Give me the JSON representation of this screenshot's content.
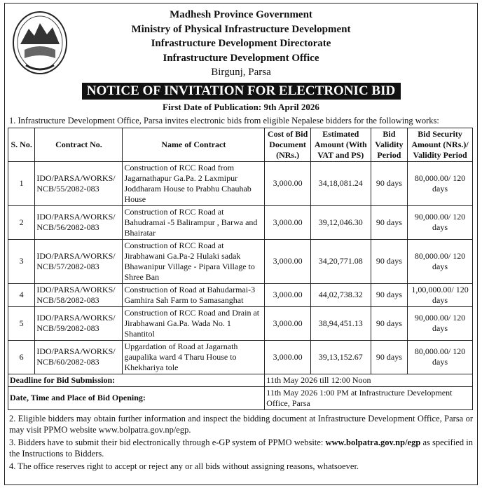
{
  "header": {
    "line1": "Madhesh Province Government",
    "line2": "Ministry of Physical Infrastructure Development",
    "line3": "Infrastructure Development Directorate",
    "line4": "Infrastructure Development Office",
    "location": "Birgunj, Parsa",
    "title": "NOTICE OF INVITATION FOR ELECTRONIC BID",
    "publication": "First Date of Publication: 9th April 2026"
  },
  "intro": "1. Infrastructure Development Office, Parsa invites electronic bids from eligible Nepalese bidders for the following works:",
  "table": {
    "headers": [
      "S. No.",
      "Contract No.",
      "Name of Contract",
      "Cost of Bid Document (NRs.)",
      "Estimated Amount (With VAT and PS)",
      "Bid Validity Period",
      "Bid Security Amount (NRs.)/ Validity Period"
    ],
    "rows": [
      {
        "sno": "1",
        "contract": "IDO/PARSA/WORKS/ NCB/55/2082-083",
        "name": "Construction of RCC Road from Jagarnathapur Ga.Pa. 2  Laxmipur Joddharam House to Prabhu Chauhab House",
        "cost": "3,000.00",
        "estimate": "34,18,081.24",
        "validity": "90 days",
        "security": "80,000.00/ 120 days"
      },
      {
        "sno": "2",
        "contract": "IDO/PARSA/WORKS/ NCB/56/2082-083",
        "name": "Construction of RCC Road at Bahudramai -5 Balirampur , Barwa and Bhairatar",
        "cost": "3,000.00",
        "estimate": "39,12,046.30",
        "validity": "90 days",
        "security": "90,000.00/ 120 days"
      },
      {
        "sno": "3",
        "contract": "IDO/PARSA/WORKS/ NCB/57/2082-083",
        "name": "Construction of RCC Road at Jirabhawani Ga.Pa-2  Hulaki sadak Bhawanipur Village - Pipara Village to Shree Ban",
        "cost": "3,000.00",
        "estimate": "34,20,771.08",
        "validity": "90 days",
        "security": "80,000.00/ 120 days"
      },
      {
        "sno": "4",
        "contract": "IDO/PARSA/WORKS/ NCB/58/2082-083",
        "name": "Construction of Road at Bahudarmai-3 Gamhira Sah Farm to Samasanghat",
        "cost": "3,000.00",
        "estimate": "44,02,738.32",
        "validity": "90 days",
        "security": "1,00,000.00/ 120 days"
      },
      {
        "sno": "5",
        "contract": "IDO/PARSA/WORKS/ NCB/59/2082-083",
        "name": "Construction of RCC Road and Drain at Jirabhawani Ga.Pa. Wada No. 1 Shantitol",
        "cost": "3,000.00",
        "estimate": "38,94,451.13",
        "validity": "90 days",
        "security": "90,000.00/ 120 days"
      },
      {
        "sno": "6",
        "contract": "IDO/PARSA/WORKS/ NCB/60/2082-083",
        "name": "Upgardation of Road at Jagarnath gaupalika ward 4 Tharu House to Khekhariya tole",
        "cost": "3,000.00",
        "estimate": "39,13,152.67",
        "validity": "90 days",
        "security": "80,000.00/ 120 days"
      }
    ],
    "deadline_label": "Deadline for Bid Submission:",
    "deadline_value": "11th May 2026 till 12:00 Noon",
    "opening_label": "Date, Time and Place of Bid Opening:",
    "opening_value": "11th May 2026 1:00 PM at Infrastructure Development Office, Parsa"
  },
  "notes": {
    "n2": "2. Eligible bidders may obtain further information and inspect the bidding document at Infrastructure Development Office, Parsa or may visit PPMO website www.bolpatra.gov.np/egp.",
    "n3_pre": "3. Bidders have to submit their bid electronically through e-GP system of PPMO website: ",
    "n3_link": "www.bolpatra.gov.np/egp",
    "n3_post": " as specified in the Instructions to Bidders.",
    "n4": "4. The office reserves right to accept or reject any or all bids without assigning reasons, whatsoever."
  }
}
